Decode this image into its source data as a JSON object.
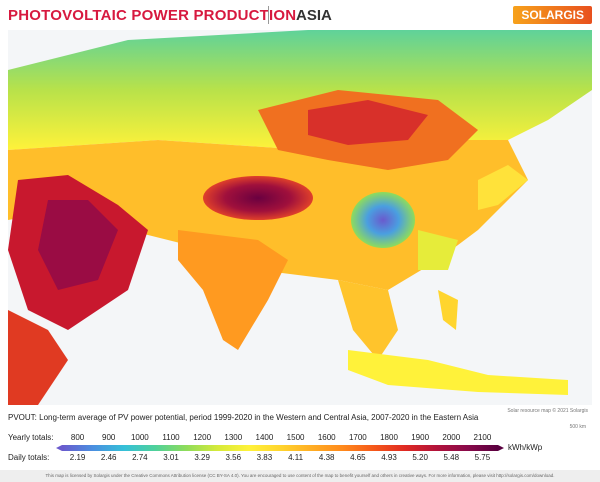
{
  "header": {
    "title": "PHOTOVOLTAIC POWER PRODUCTION",
    "region": "ASIA",
    "logo": "SOLARGIS"
  },
  "map": {
    "credit": "Solar resource map © 2021 Solargis",
    "scale": "500 km"
  },
  "description": "PVOUT: Long-term average of PV power potential, period 1999-2020 in the Western and Central Asia, 2007-2020 in the Eastern Asia",
  "legend": {
    "yearly_label": "Yearly totals:",
    "yearly": [
      800,
      900,
      1000,
      1100,
      1200,
      1300,
      1400,
      1500,
      1600,
      1700,
      1800,
      1900,
      2000,
      2100
    ],
    "daily_label": "Daily totals:",
    "daily": [
      2.19,
      2.46,
      2.74,
      3.01,
      3.29,
      3.56,
      3.83,
      4.11,
      4.38,
      4.65,
      4.93,
      {
        "value": 5.2,
        "label": "5.20"
      },
      5.48,
      5.75
    ],
    "unit": "kWh/kWp",
    "colors": [
      "#6a5acd",
      "#4a8fe0",
      "#35c0d8",
      "#4fd19a",
      "#8fdc5a",
      "#d6ea3a",
      "#fff23a",
      "#ffd52e",
      "#ffae24",
      "#ff8a1c",
      "#f5591a",
      "#e02a22",
      "#b3133a",
      "#8a0a4a",
      "#5a0040"
    ]
  },
  "footer": "This map is licensed by Solargis under the Creative Commons Attribution license (CC BY-SA 4.0). You are encouraged to use content of the map to benefit yourself and others in creative ways. For more information, please visit http://solargis.com/download."
}
